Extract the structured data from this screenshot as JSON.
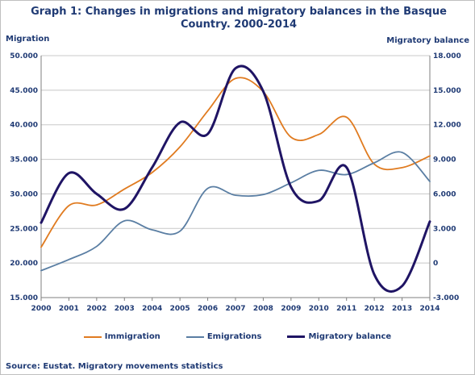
{
  "chart_data": {
    "type": "line",
    "title": "Graph 1: Changes in migrations and migratory balances in the Basque Country. 2000-2014",
    "ylabel_left": "Migration",
    "ylabel_right": "Migratory balance",
    "x": [
      "2000",
      "2001",
      "2002",
      "2003",
      "2004",
      "2005",
      "2006",
      "2007",
      "2008",
      "2009",
      "2010",
      "2011",
      "2012",
      "2013",
      "2014"
    ],
    "ylim_left": [
      15000,
      50000
    ],
    "ylim_right": [
      -3000,
      18000
    ],
    "yticks_left": [
      "15.000",
      "20.000",
      "25.000",
      "30.000",
      "35.000",
      "40.000",
      "45.000",
      "50.000"
    ],
    "yticks_right": [
      "-3.000",
      "0",
      "3.000",
      "6.000",
      "9.000",
      "12.000",
      "15.000",
      "18.000"
    ],
    "grid": "horizontal",
    "legend": "bottom",
    "series": [
      {
        "name": "Immigration",
        "axis": "left",
        "color": "#e07b20",
        "width": 1.8,
        "values": [
          22300,
          28300,
          28400,
          30700,
          33100,
          36800,
          42000,
          46700,
          44800,
          38200,
          38600,
          41100,
          34300,
          33800,
          35500
        ]
      },
      {
        "name": "Emigrations",
        "axis": "left",
        "color": "#5a7ea3",
        "width": 1.8,
        "values": [
          18900,
          20500,
          22400,
          26100,
          24800,
          24600,
          30800,
          29800,
          29900,
          31600,
          33400,
          32800,
          34500,
          36000,
          31800
        ]
      },
      {
        "name": "Migratory balance",
        "axis": "right",
        "color": "#1f1464",
        "width": 3,
        "values": [
          3500,
          7800,
          6000,
          4700,
          8300,
          12200,
          11200,
          16900,
          14900,
          6600,
          5400,
          8300,
          -1000,
          -2000,
          3600
        ]
      }
    ]
  },
  "source": "Source: Eustat. Migratory movements statistics"
}
